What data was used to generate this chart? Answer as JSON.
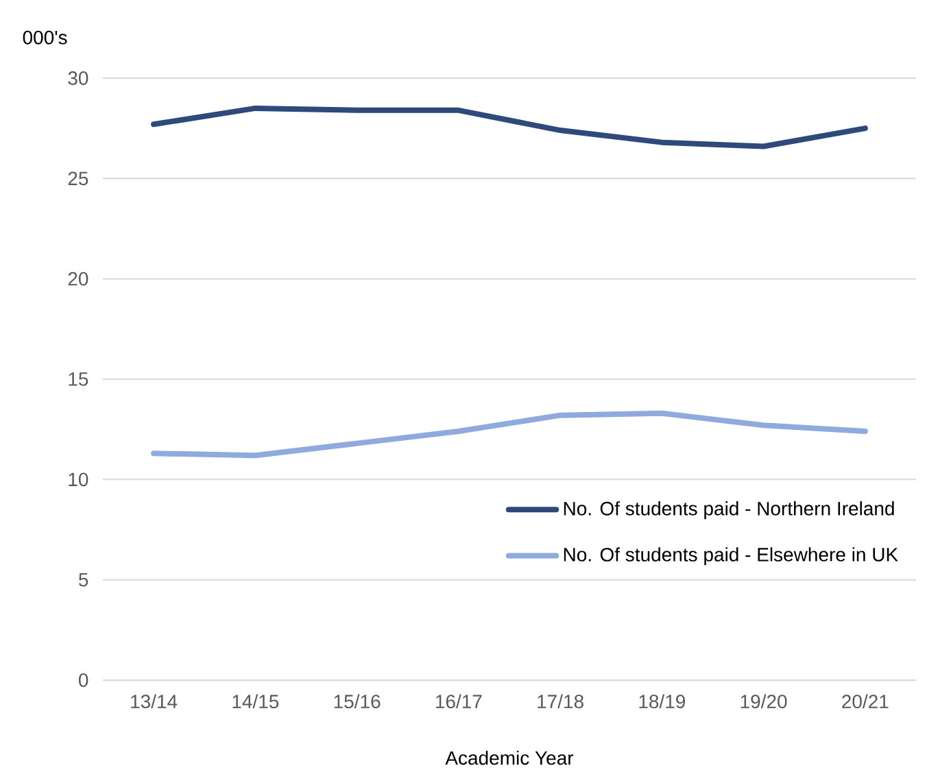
{
  "chart_data": {
    "type": "line",
    "xlabel": "Academic Year",
    "ylabel": "000's",
    "categories": [
      "13/14",
      "14/15",
      "15/16",
      "16/17",
      "17/18",
      "18/19",
      "19/20",
      "20/21"
    ],
    "series": [
      {
        "name": "No. Of students paid - Northern Ireland",
        "color": "#2e4a7a",
        "values": [
          27.7,
          28.5,
          28.4,
          28.4,
          27.4,
          26.8,
          26.6,
          27.5
        ]
      },
      {
        "name": "No. Of students paid - Elsewhere in UK",
        "color": "#8faadc",
        "values": [
          11.3,
          11.2,
          11.8,
          12.4,
          13.2,
          13.3,
          12.7,
          12.4
        ]
      }
    ],
    "ylim": [
      0,
      30
    ],
    "yticks": [
      0,
      5,
      10,
      15,
      20,
      25,
      30
    ],
    "grid": "y",
    "legend": "bottom right"
  }
}
